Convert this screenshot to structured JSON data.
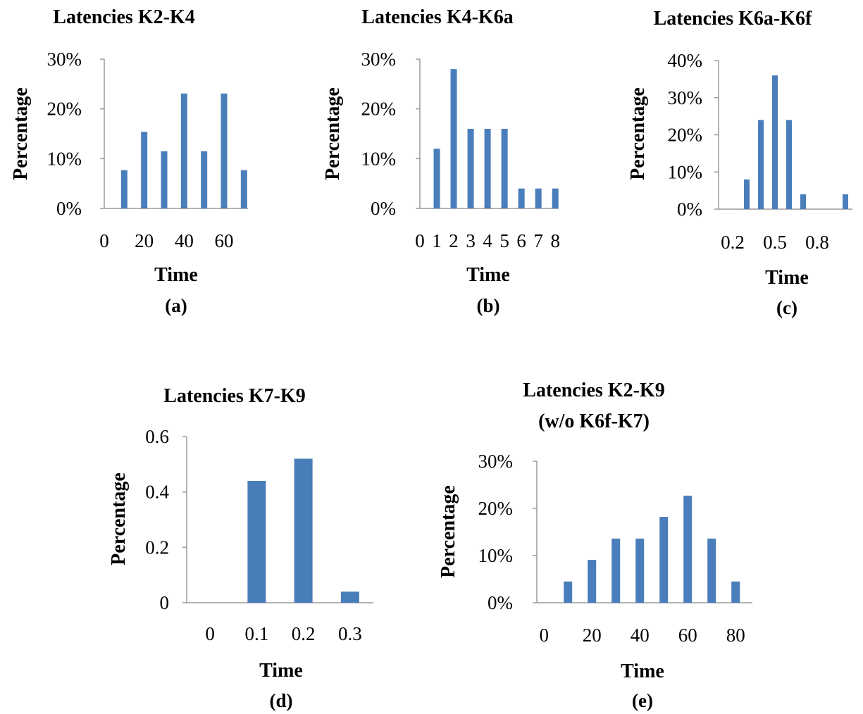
{
  "bar_color": "#4a7ebb",
  "axis_color": "#9a9a9a",
  "chart_data": [
    {
      "type": "bar",
      "title": "Latencies K2-K4",
      "xlabel": "Time",
      "ylabel": "Percentage",
      "panel": "(a)",
      "xlim": [
        0,
        72
      ],
      "ylim": [
        0,
        30
      ],
      "xticks": [
        0,
        20,
        40,
        60
      ],
      "xtick_labels": [
        "0",
        "20",
        "40",
        "60"
      ],
      "yticks": [
        0,
        10,
        20,
        30
      ],
      "ytick_labels": [
        "0%",
        "10%",
        "20%",
        "30%"
      ],
      "x": [
        10,
        20,
        30,
        40,
        50,
        60,
        70
      ],
      "values": [
        7.7,
        15.4,
        11.5,
        23.1,
        11.5,
        23.1,
        7.7
      ]
    },
    {
      "type": "bar",
      "title": "Latencies K4-K6a",
      "xlabel": "Time",
      "ylabel": "Percentage",
      "panel": "(b)",
      "xlim": [
        0,
        8.2
      ],
      "ylim": [
        0,
        30
      ],
      "xticks": [
        0,
        1,
        2,
        3,
        4,
        5,
        6,
        7,
        8
      ],
      "xtick_labels": [
        "0",
        "1",
        "2",
        "3",
        "4",
        "5",
        "6",
        "7",
        "8"
      ],
      "yticks": [
        0,
        10,
        20,
        30
      ],
      "ytick_labels": [
        "0%",
        "10%",
        "20%",
        "30%"
      ],
      "x": [
        1,
        2,
        3,
        4,
        5,
        6,
        7,
        8
      ],
      "values": [
        12,
        28,
        16,
        16,
        16,
        4,
        4,
        4
      ]
    },
    {
      "type": "bar",
      "title": "Latencies K6a-K6f",
      "xlabel": "Time",
      "ylabel": "Percentage",
      "panel": "(c)",
      "xlim": [
        0.1,
        1.05
      ],
      "ylim": [
        0,
        40
      ],
      "xticks": [
        0.2,
        0.5,
        0.8
      ],
      "xtick_labels": [
        "0.2",
        "0.5",
        "0.8"
      ],
      "yticks": [
        0,
        10,
        20,
        30,
        40
      ],
      "ytick_labels": [
        "0%",
        "10%",
        "20%",
        "30%",
        "40%"
      ],
      "x": [
        0.3,
        0.4,
        0.5,
        0.6,
        0.7,
        1.0
      ],
      "values": [
        8,
        24,
        36,
        24,
        4,
        4
      ]
    },
    {
      "type": "bar",
      "title": "Latencies K7-K9",
      "xlabel": "Time",
      "ylabel": "Percentage",
      "panel": "(d)",
      "xlim": [
        -0.05,
        0.35
      ],
      "ylim": [
        0,
        0.6
      ],
      "xticks": [
        0,
        0.1,
        0.2,
        0.3
      ],
      "xtick_labels": [
        "0",
        "0.1",
        "0.2",
        "0.3"
      ],
      "yticks": [
        0,
        0.2,
        0.4,
        0.6
      ],
      "ytick_labels": [
        "0",
        "0.2",
        "0.4",
        "0.6"
      ],
      "x": [
        0.1,
        0.2,
        0.3
      ],
      "values": [
        0.44,
        0.52,
        0.04
      ]
    },
    {
      "type": "bar",
      "title": "Latencies K2-K9",
      "subtitle": "(w/o K6f-K7)",
      "xlabel": "Time",
      "ylabel": "Percentage",
      "panel": "(e)",
      "xlim": [
        -3,
        87
      ],
      "ylim": [
        0,
        30
      ],
      "xticks": [
        0,
        20,
        40,
        60,
        80
      ],
      "xtick_labels": [
        "0",
        "20",
        "40",
        "60",
        "80"
      ],
      "yticks": [
        0,
        10,
        20,
        30
      ],
      "ytick_labels": [
        "0%",
        "10%",
        "20%",
        "30%"
      ],
      "x": [
        10,
        20,
        30,
        40,
        50,
        60,
        70,
        80
      ],
      "values": [
        4.5,
        9.1,
        13.6,
        13.6,
        18.2,
        22.7,
        13.6,
        4.5
      ]
    }
  ]
}
